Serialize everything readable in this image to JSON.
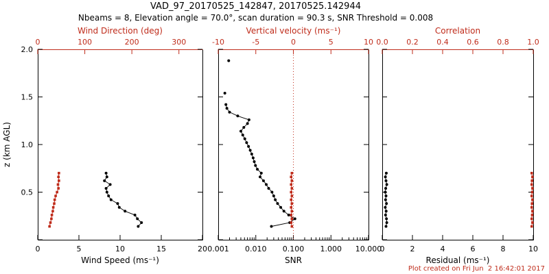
{
  "header": {
    "title": "VAD_97_20170525_142847, 20170525.142944",
    "subtitle": "Nbeams = 8, Elevation angle = 70.0°, scan duration = 90.3 s, SNR Threshold = 0.008"
  },
  "footer": {
    "created_text": "Plot created on Fri Jun  2 16:42:01 2017"
  },
  "colors": {
    "black": "#000000",
    "red": "#bf2b1a",
    "background": "#ffffff"
  },
  "chart_data": [
    {
      "name": "wind",
      "type": "line",
      "y": {
        "label": "z (km AGL)",
        "min": 0,
        "max": 2,
        "major_ticks": [
          0,
          0.5,
          1.0,
          1.5,
          2.0
        ],
        "tick_labels": [
          "",
          "0.5",
          "1.0",
          "1.5",
          "2.0"
        ],
        "show_labels": true
      },
      "x_bottom": {
        "label": "Wind Speed (ms⁻¹)",
        "min": 0,
        "max": 20,
        "ticks": [
          0,
          5,
          10,
          15,
          20
        ],
        "tick_labels": [
          "0",
          "5",
          "10",
          "15",
          "20"
        ]
      },
      "x_top": {
        "label": "Wind Direction (deg)",
        "min": 0,
        "max": 350,
        "ticks": [
          0,
          100,
          200,
          300
        ],
        "tick_labels": [
          "0",
          "100",
          "200",
          "300"
        ]
      },
      "series": [
        {
          "name": "wind-speed",
          "axis": "bottom",
          "color": "black",
          "marker": "circle",
          "line": true,
          "points": [
            [
              12.2,
              0.14
            ],
            [
              12.6,
              0.18
            ],
            [
              12.1,
              0.22
            ],
            [
              11.8,
              0.26
            ],
            [
              10.6,
              0.3
            ],
            [
              9.9,
              0.34
            ],
            [
              9.7,
              0.38
            ],
            [
              8.9,
              0.42
            ],
            [
              8.6,
              0.46
            ],
            [
              8.4,
              0.5
            ],
            [
              8.3,
              0.54
            ],
            [
              8.8,
              0.58
            ],
            [
              8.1,
              0.62
            ],
            [
              8.4,
              0.66
            ],
            [
              8.3,
              0.7
            ]
          ]
        },
        {
          "name": "wind-direction",
          "axis": "top",
          "color": "red",
          "marker": "square",
          "line": true,
          "points": [
            [
              25,
              0.14
            ],
            [
              27,
              0.18
            ],
            [
              29,
              0.22
            ],
            [
              30,
              0.26
            ],
            [
              32,
              0.3
            ],
            [
              33,
              0.34
            ],
            [
              35,
              0.38
            ],
            [
              36,
              0.42
            ],
            [
              38,
              0.46
            ],
            [
              41,
              0.5
            ],
            [
              44,
              0.54
            ],
            [
              43,
              0.58
            ],
            [
              45,
              0.62
            ],
            [
              44,
              0.66
            ],
            [
              45,
              0.7
            ]
          ]
        }
      ]
    },
    {
      "name": "snr",
      "type": "line",
      "y": {
        "label": "",
        "min": 0,
        "max": 2,
        "major_ticks": [
          0,
          0.5,
          1.0,
          1.5,
          2.0
        ],
        "tick_labels": [
          "",
          "",
          "",
          "",
          ""
        ],
        "show_labels": false
      },
      "x_bottom": {
        "label": "SNR",
        "scale": "log",
        "min": 0.001,
        "max": 10,
        "ticks": [
          0.001,
          0.01,
          0.1,
          1.0,
          10.0
        ],
        "tick_labels": [
          "0.001",
          "0.010",
          "0.100",
          "1.000",
          "10.000"
        ]
      },
      "x_top": {
        "label": "Vertical velocity (ms⁻¹)",
        "min": -10,
        "max": 10,
        "ticks": [
          -10,
          -5,
          0,
          5,
          10
        ],
        "tick_labels": [
          "-10",
          "-5",
          "0",
          "5",
          "10"
        ]
      },
      "refline": {
        "axis": "top",
        "value": 0,
        "style": "dotted",
        "color": "red"
      },
      "series": [
        {
          "name": "snr-profile",
          "axis": "bottom",
          "color": "black",
          "marker": "circle",
          "line": true,
          "points": [
            [
              0.026,
              0.14
            ],
            [
              0.08,
              0.18
            ],
            [
              0.11,
              0.22
            ],
            [
              0.075,
              0.26
            ],
            [
              0.056,
              0.3
            ],
            [
              0.046,
              0.34
            ],
            [
              0.038,
              0.38
            ],
            [
              0.033,
              0.42
            ],
            [
              0.03,
              0.46
            ],
            [
              0.027,
              0.5
            ],
            [
              0.022,
              0.54
            ],
            [
              0.019,
              0.58
            ],
            [
              0.016,
              0.62
            ],
            [
              0.013,
              0.66
            ],
            [
              0.014,
              0.7
            ],
            [
              0.011,
              0.74
            ],
            [
              0.0098,
              0.78
            ],
            [
              0.0091,
              0.82
            ],
            [
              0.0085,
              0.86
            ],
            [
              0.0078,
              0.9
            ],
            [
              0.0071,
              0.94
            ],
            [
              0.0064,
              0.98
            ],
            [
              0.0057,
              1.02
            ],
            [
              0.0051,
              1.06
            ],
            [
              0.0045,
              1.1
            ],
            [
              0.004,
              1.14
            ],
            [
              0.0048,
              1.18
            ],
            [
              0.006,
              1.22
            ],
            [
              0.0066,
              1.26
            ],
            [
              0.0033,
              1.3
            ],
            [
              0.002,
              1.34
            ],
            [
              0.0017,
              1.38
            ],
            [
              0.0016,
              1.42
            ]
          ]
        },
        {
          "name": "snr-upper-gates",
          "axis": "bottom",
          "color": "black",
          "marker": "circle",
          "line": false,
          "points": [
            [
              0.0015,
              1.54
            ],
            [
              0.0019,
              1.88
            ]
          ]
        },
        {
          "name": "vertical-velocity",
          "axis": "top",
          "color": "red",
          "marker": "square",
          "line": true,
          "points": [
            [
              -0.2,
              0.14
            ],
            [
              -0.3,
              0.18
            ],
            [
              -0.2,
              0.22
            ],
            [
              -0.3,
              0.26
            ],
            [
              -0.2,
              0.3
            ],
            [
              -0.3,
              0.34
            ],
            [
              -0.2,
              0.38
            ],
            [
              -0.3,
              0.42
            ],
            [
              -0.2,
              0.46
            ],
            [
              -0.3,
              0.5
            ],
            [
              -0.2,
              0.54
            ],
            [
              -0.3,
              0.58
            ],
            [
              -0.2,
              0.62
            ],
            [
              -0.3,
              0.66
            ],
            [
              -0.2,
              0.7
            ]
          ]
        }
      ]
    },
    {
      "name": "residual",
      "type": "line",
      "y": {
        "label": "",
        "min": 0,
        "max": 2,
        "major_ticks": [
          0,
          0.5,
          1.0,
          1.5,
          2.0
        ],
        "tick_labels": [
          "",
          "",
          "",
          "",
          ""
        ],
        "show_labels": false
      },
      "x_bottom": {
        "label": "Residual (ms⁻¹)",
        "min": 0,
        "max": 10,
        "ticks": [
          0,
          2,
          4,
          6,
          8,
          10
        ],
        "tick_labels": [
          "0",
          "2",
          "4",
          "6",
          "8",
          "10"
        ]
      },
      "x_top": {
        "label": "Correlation",
        "min": 0,
        "max": 1,
        "ticks": [
          0.0,
          0.2,
          0.4,
          0.6,
          0.8,
          1.0
        ],
        "tick_labels": [
          "0.0",
          "0.2",
          "0.4",
          "0.6",
          "0.8",
          "1.0"
        ]
      },
      "series": [
        {
          "name": "residual",
          "axis": "bottom",
          "color": "black",
          "marker": "circle",
          "line": true,
          "points": [
            [
              0.25,
              0.14
            ],
            [
              0.3,
              0.18
            ],
            [
              0.28,
              0.22
            ],
            [
              0.22,
              0.26
            ],
            [
              0.26,
              0.3
            ],
            [
              0.2,
              0.34
            ],
            [
              0.28,
              0.38
            ],
            [
              0.22,
              0.42
            ],
            [
              0.25,
              0.46
            ],
            [
              0.2,
              0.5
            ],
            [
              0.23,
              0.54
            ],
            [
              0.3,
              0.58
            ],
            [
              0.25,
              0.62
            ],
            [
              0.21,
              0.66
            ],
            [
              0.27,
              0.7
            ]
          ]
        },
        {
          "name": "correlation",
          "axis": "top",
          "color": "red",
          "marker": "square",
          "line": true,
          "points": [
            [
              0.99,
              0.14
            ],
            [
              0.995,
              0.18
            ],
            [
              0.99,
              0.22
            ],
            [
              0.993,
              0.26
            ],
            [
              0.995,
              0.3
            ],
            [
              0.99,
              0.34
            ],
            [
              0.992,
              0.38
            ],
            [
              0.995,
              0.42
            ],
            [
              0.99,
              0.46
            ],
            [
              0.993,
              0.5
            ],
            [
              0.995,
              0.54
            ],
            [
              0.99,
              0.58
            ],
            [
              0.992,
              0.62
            ],
            [
              0.995,
              0.66
            ],
            [
              0.99,
              0.7
            ]
          ]
        }
      ]
    }
  ]
}
